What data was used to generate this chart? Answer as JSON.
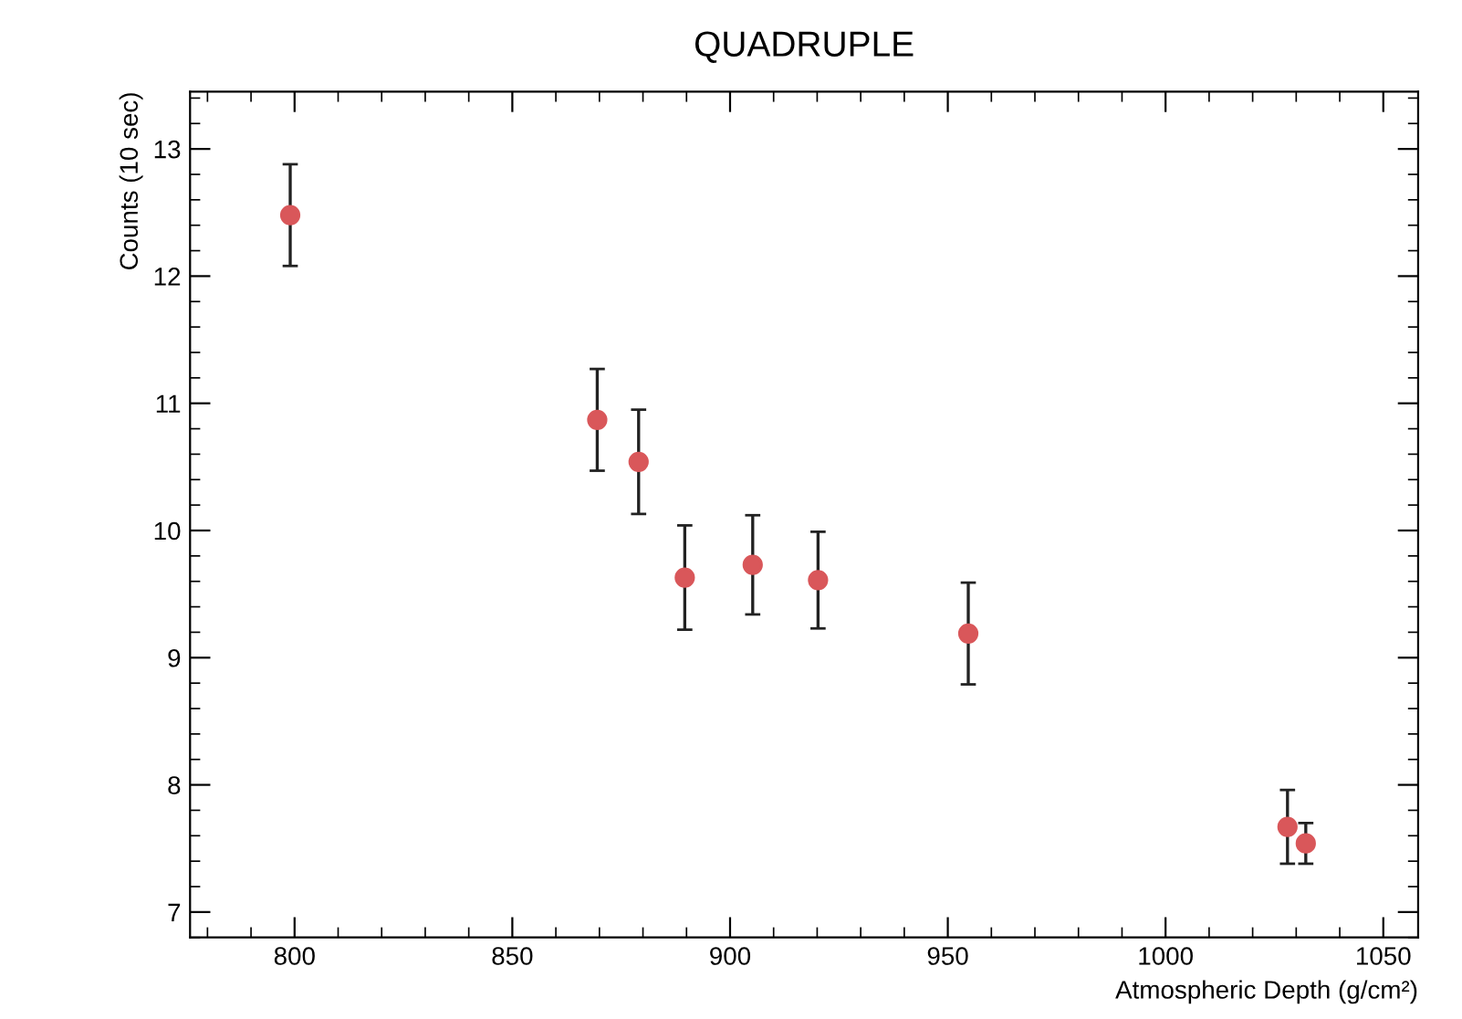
{
  "chart_data": {
    "type": "scatter",
    "title": "QUADRUPLE",
    "xlabel": "Atmospheric Depth (g/cm²)",
    "ylabel": "Counts (10 sec)",
    "x": [
      799,
      869.5,
      879,
      889.6,
      905.2,
      920.2,
      954.7,
      1028,
      1032.2
    ],
    "values": [
      12.48,
      10.87,
      10.54,
      9.63,
      9.73,
      9.61,
      9.19,
      7.67,
      7.54
    ],
    "errors": [
      0.4,
      0.4,
      0.41,
      0.41,
      0.39,
      0.38,
      0.4,
      0.29,
      0.16
    ],
    "color": "#d9575a",
    "marker": "circle",
    "xlim": [
      776,
      1058
    ],
    "xticks": [
      800,
      850,
      900,
      950,
      1000,
      1050
    ],
    "ylim": [
      6.8,
      13.45
    ],
    "yticks": [
      7,
      8,
      9,
      10,
      11,
      12,
      13
    ],
    "grid": false,
    "legend": false
  }
}
